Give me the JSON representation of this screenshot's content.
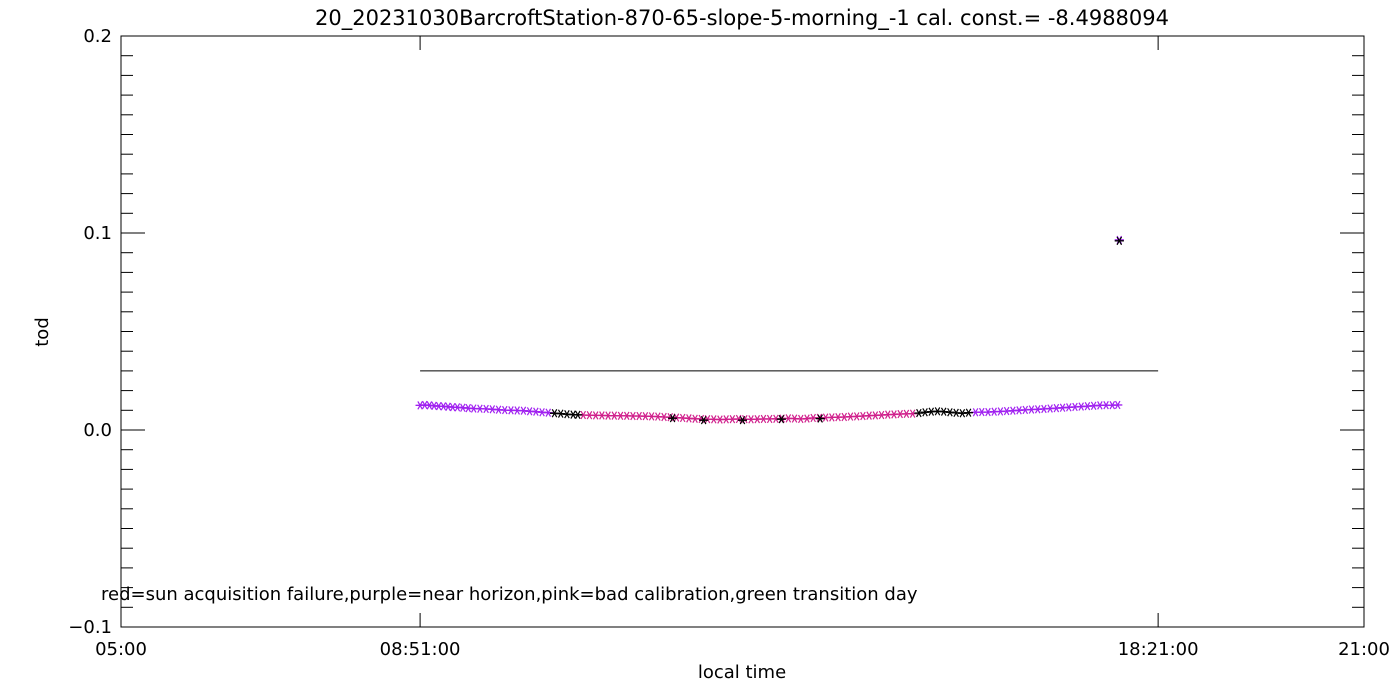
{
  "chart_data": {
    "type": "scatter",
    "title": "20_20231030BarcroftStation-870-65-slope-5-morning_-1 cal. const.= -8.4988094",
    "xlabel": "local time",
    "ylabel": "tod",
    "xlim": [
      5.0,
      21.0
    ],
    "ylim": [
      -0.1,
      0.2
    ],
    "x_ticks": [
      {
        "value": 5.0,
        "label": "05:00"
      },
      {
        "value": 8.85,
        "label": "08:51:00"
      },
      {
        "value": 18.35,
        "label": "18:21:00"
      },
      {
        "value": 21.0,
        "label": "21:00"
      }
    ],
    "y_ticks": [
      {
        "value": -0.1,
        "label": "−0.1"
      },
      {
        "value": 0.0,
        "label": "0.0"
      },
      {
        "value": 0.1,
        "label": "0.1"
      },
      {
        "value": 0.2,
        "label": "0.2"
      }
    ],
    "reference_line": {
      "x_start": 8.85,
      "x_end": 18.35,
      "y": 0.03,
      "color": "#000000"
    },
    "annotation": "red=sun acquisition failure,purple=near horizon,pink=bad calibration,green transition day",
    "colors": {
      "normal": "#000000",
      "purple": "#a020f0",
      "pink": "#d0208c",
      "red": "#ff0000",
      "green": "#00c000"
    },
    "series": [
      {
        "color": "#a020f0",
        "points": [
          [
            8.85,
            0.0125
          ],
          [
            8.91,
            0.0127
          ],
          [
            8.97,
            0.0125
          ],
          [
            9.03,
            0.0123
          ],
          [
            9.09,
            0.0121
          ],
          [
            9.15,
            0.012
          ],
          [
            9.21,
            0.0118
          ],
          [
            9.27,
            0.0116
          ],
          [
            9.33,
            0.0115
          ],
          [
            9.4,
            0.0113
          ],
          [
            9.47,
            0.0111
          ],
          [
            9.54,
            0.0109
          ],
          [
            9.62,
            0.0108
          ],
          [
            9.7,
            0.0107
          ],
          [
            9.78,
            0.0105
          ],
          [
            9.86,
            0.0103
          ],
          [
            9.94,
            0.0101
          ],
          [
            10.02,
            0.01
          ],
          [
            10.1,
            0.0099
          ],
          [
            10.18,
            0.0098
          ],
          [
            10.26,
            0.0095
          ],
          [
            10.34,
            0.0093
          ],
          [
            10.42,
            0.009
          ],
          [
            10.5,
            0.0088
          ],
          [
            16.0,
            0.009
          ],
          [
            16.08,
            0.0091
          ],
          [
            16.16,
            0.0091
          ],
          [
            16.24,
            0.0093
          ],
          [
            16.32,
            0.0094
          ],
          [
            16.4,
            0.0096
          ],
          [
            16.48,
            0.0098
          ],
          [
            16.56,
            0.01
          ],
          [
            16.64,
            0.0102
          ],
          [
            16.72,
            0.0104
          ],
          [
            16.8,
            0.0105
          ],
          [
            16.88,
            0.0107
          ],
          [
            16.96,
            0.0109
          ],
          [
            17.04,
            0.0111
          ],
          [
            17.12,
            0.0113
          ],
          [
            17.2,
            0.0115
          ],
          [
            17.28,
            0.0117
          ],
          [
            17.36,
            0.0119
          ],
          [
            17.44,
            0.0121
          ],
          [
            17.52,
            0.0123
          ],
          [
            17.6,
            0.0125
          ],
          [
            17.68,
            0.0126
          ],
          [
            17.76,
            0.0126
          ],
          [
            17.83,
            0.0127
          ],
          [
            17.85,
            0.0965
          ]
        ]
      },
      {
        "color": "#d0208c",
        "points": [
          [
            10.95,
            0.0076
          ],
          [
            11.03,
            0.0075
          ],
          [
            11.11,
            0.0074
          ],
          [
            11.19,
            0.0074
          ],
          [
            11.27,
            0.0073
          ],
          [
            11.35,
            0.0073
          ],
          [
            11.43,
            0.0072
          ],
          [
            11.51,
            0.0072
          ],
          [
            11.59,
            0.0071
          ],
          [
            11.67,
            0.0071
          ],
          [
            11.75,
            0.007
          ],
          [
            11.83,
            0.0069
          ],
          [
            11.91,
            0.0068
          ],
          [
            11.99,
            0.0066
          ],
          [
            12.07,
            0.0065
          ],
          [
            12.15,
            0.0063
          ],
          [
            12.23,
            0.0061
          ],
          [
            12.31,
            0.0059
          ],
          [
            12.39,
            0.0057
          ],
          [
            12.47,
            0.0056
          ],
          [
            12.55,
            0.0055
          ],
          [
            12.63,
            0.0054
          ],
          [
            12.71,
            0.0053
          ],
          [
            12.79,
            0.0054
          ],
          [
            12.87,
            0.0055
          ],
          [
            12.95,
            0.0056
          ],
          [
            13.03,
            0.0055
          ],
          [
            13.11,
            0.0054
          ],
          [
            13.19,
            0.0055
          ],
          [
            13.27,
            0.0056
          ],
          [
            13.35,
            0.0056
          ],
          [
            13.43,
            0.0057
          ],
          [
            13.51,
            0.0058
          ],
          [
            13.59,
            0.0059
          ],
          [
            13.67,
            0.0058
          ],
          [
            13.75,
            0.0056
          ],
          [
            13.83,
            0.0058
          ],
          [
            13.91,
            0.0061
          ],
          [
            13.99,
            0.0062
          ],
          [
            14.07,
            0.0063
          ],
          [
            14.15,
            0.0064
          ],
          [
            14.23,
            0.0065
          ],
          [
            14.31,
            0.0066
          ],
          [
            14.39,
            0.0068
          ],
          [
            14.47,
            0.0069
          ],
          [
            14.55,
            0.0071
          ],
          [
            14.63,
            0.0073
          ],
          [
            14.71,
            0.0074
          ],
          [
            14.79,
            0.0076
          ],
          [
            14.87,
            0.0078
          ],
          [
            14.95,
            0.0079
          ],
          [
            15.03,
            0.0081
          ],
          [
            15.11,
            0.0082
          ],
          [
            15.19,
            0.0083
          ]
        ]
      },
      {
        "color": "#000000",
        "points": [
          [
            10.58,
            0.0085
          ],
          [
            10.66,
            0.0083
          ],
          [
            10.74,
            0.008
          ],
          [
            10.82,
            0.0078
          ],
          [
            10.88,
            0.0077
          ],
          [
            12.1,
            0.006
          ],
          [
            12.5,
            0.005
          ],
          [
            13.0,
            0.005
          ],
          [
            13.5,
            0.0055
          ],
          [
            14.0,
            0.0058
          ],
          [
            15.27,
            0.0086
          ],
          [
            15.35,
            0.009
          ],
          [
            15.43,
            0.0093
          ],
          [
            15.51,
            0.0095
          ],
          [
            15.59,
            0.0093
          ],
          [
            15.67,
            0.009
          ],
          [
            15.75,
            0.0087
          ],
          [
            15.83,
            0.0085
          ],
          [
            15.91,
            0.0088
          ],
          [
            17.85,
            0.096
          ]
        ]
      }
    ]
  }
}
